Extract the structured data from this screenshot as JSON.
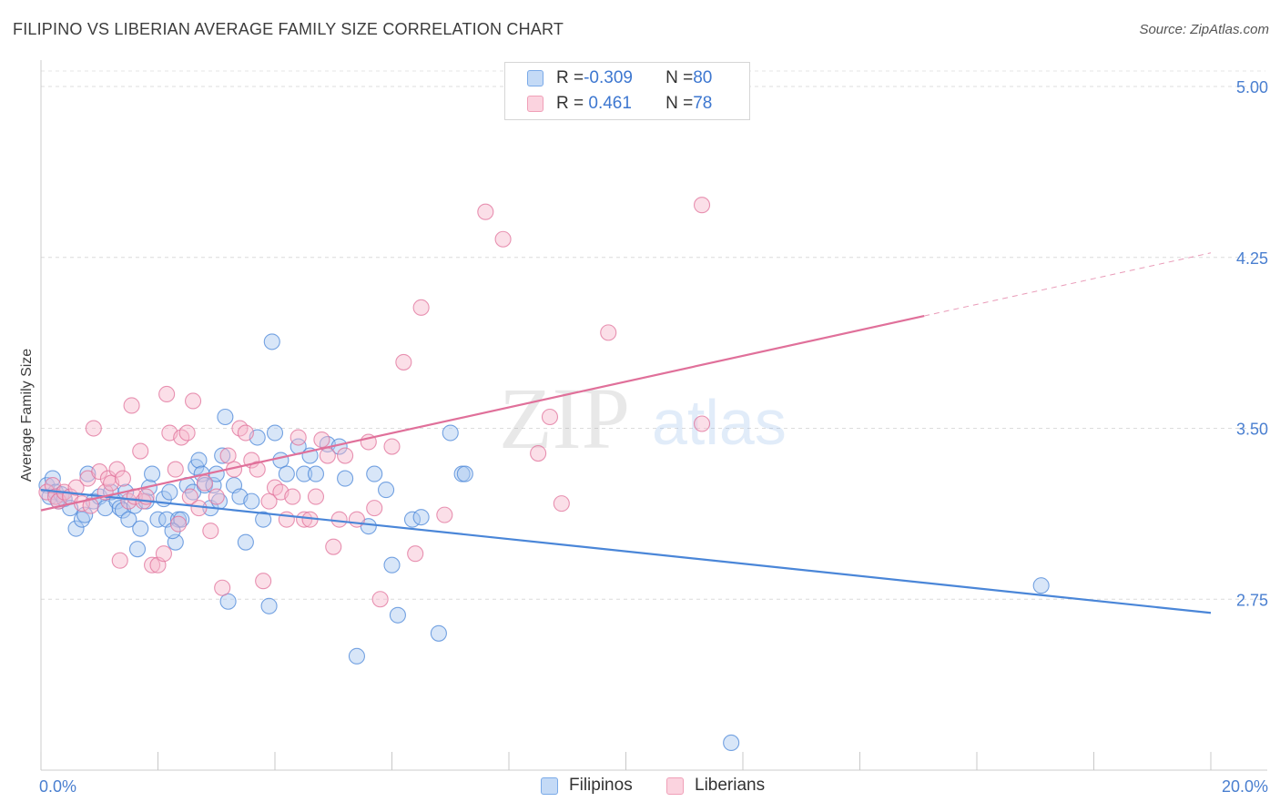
{
  "title": "FILIPINO VS LIBERIAN AVERAGE FAMILY SIZE CORRELATION CHART",
  "source": "Source: ZipAtlas.com",
  "watermark": {
    "zip": "ZIP",
    "atlas": "atlas"
  },
  "legend": {
    "rows": [
      {
        "r_label": "R = ",
        "r_value": "-0.309",
        "n_label": "N = ",
        "n_value": "80",
        "color": "#7aaae8",
        "fill": "#c4daf6"
      },
      {
        "r_label": "R = ",
        "r_value": " 0.461",
        "n_label": "N = ",
        "n_value": "78",
        "color": "#f0a0b8",
        "fill": "#fbd3df"
      }
    ]
  },
  "bottom_legend": [
    {
      "label": "Filipinos",
      "color": "#7aaae8",
      "fill": "#c4daf6"
    },
    {
      "label": "Liberians",
      "color": "#f0a0b8",
      "fill": "#fbd3df"
    }
  ],
  "chart_data": {
    "type": "scatter",
    "ylabel": "Average Family Size",
    "xlim": [
      0,
      20
    ],
    "ylim": [
      2.0,
      5.08
    ],
    "y_ticks": [
      {
        "value": 5.0,
        "label": "5.00"
      },
      {
        "value": 4.25,
        "label": "4.25"
      },
      {
        "value": 3.5,
        "label": "3.50"
      },
      {
        "value": 2.75,
        "label": "2.75"
      }
    ],
    "x_tick_labels": [
      {
        "value": 0,
        "label": "0.0%"
      },
      {
        "value": 20,
        "label": "20.0%"
      }
    ],
    "x_minor_ticks": [
      0,
      2,
      4,
      6,
      8,
      10,
      12,
      14,
      16,
      18,
      20
    ],
    "series": [
      {
        "name": "Filipinos",
        "color": "#4a86d8",
        "fill": "#a9c8f0",
        "trend": {
          "x0": 0,
          "y0": 3.23,
          "x1": 20,
          "y1": 2.69,
          "solid_until": 20
        },
        "points": [
          [
            0.1,
            3.25
          ],
          [
            0.15,
            3.2
          ],
          [
            0.2,
            3.28
          ],
          [
            0.25,
            3.22
          ],
          [
            0.3,
            3.18
          ],
          [
            0.35,
            3.21
          ],
          [
            0.4,
            3.19
          ],
          [
            0.5,
            3.15
          ],
          [
            0.6,
            3.06
          ],
          [
            0.7,
            3.1
          ],
          [
            0.75,
            3.12
          ],
          [
            0.8,
            3.3
          ],
          [
            0.9,
            3.18
          ],
          [
            1.0,
            3.2
          ],
          [
            1.1,
            3.15
          ],
          [
            1.2,
            3.22
          ],
          [
            1.3,
            3.18
          ],
          [
            1.35,
            3.15
          ],
          [
            1.4,
            3.14
          ],
          [
            1.5,
            3.1
          ],
          [
            1.6,
            3.16
          ],
          [
            1.65,
            2.97
          ],
          [
            1.7,
            3.06
          ],
          [
            1.8,
            3.18
          ],
          [
            1.85,
            3.24
          ],
          [
            1.9,
            3.3
          ],
          [
            2.0,
            3.1
          ],
          [
            2.1,
            3.19
          ],
          [
            2.15,
            3.1
          ],
          [
            2.2,
            3.22
          ],
          [
            2.3,
            3.0
          ],
          [
            2.35,
            3.1
          ],
          [
            2.4,
            3.1
          ],
          [
            2.5,
            3.25
          ],
          [
            2.6,
            3.22
          ],
          [
            2.65,
            3.33
          ],
          [
            2.7,
            3.36
          ],
          [
            2.75,
            3.3
          ],
          [
            2.8,
            3.25
          ],
          [
            2.9,
            3.15
          ],
          [
            2.95,
            3.25
          ],
          [
            3.0,
            3.3
          ],
          [
            3.05,
            3.18
          ],
          [
            3.1,
            3.38
          ],
          [
            3.15,
            3.55
          ],
          [
            3.2,
            2.74
          ],
          [
            3.3,
            3.25
          ],
          [
            3.4,
            3.2
          ],
          [
            3.5,
            3.0
          ],
          [
            3.6,
            3.18
          ],
          [
            3.7,
            3.46
          ],
          [
            3.8,
            3.1
          ],
          [
            3.9,
            2.72
          ],
          [
            3.95,
            3.88
          ],
          [
            4.0,
            3.48
          ],
          [
            4.1,
            3.36
          ],
          [
            4.2,
            3.3
          ],
          [
            4.4,
            3.42
          ],
          [
            4.5,
            3.3
          ],
          [
            4.6,
            3.38
          ],
          [
            4.7,
            3.3
          ],
          [
            4.9,
            3.43
          ],
          [
            5.1,
            3.42
          ],
          [
            5.2,
            3.28
          ],
          [
            5.4,
            2.5
          ],
          [
            5.6,
            3.07
          ],
          [
            5.7,
            3.3
          ],
          [
            5.9,
            3.23
          ],
          [
            6.0,
            2.9
          ],
          [
            6.1,
            2.68
          ],
          [
            6.35,
            3.1
          ],
          [
            6.5,
            3.11
          ],
          [
            6.8,
            2.6
          ],
          [
            7.0,
            3.48
          ],
          [
            7.2,
            3.3
          ],
          [
            7.25,
            3.3
          ],
          [
            17.1,
            2.81
          ],
          [
            11.8,
            2.12
          ],
          [
            2.25,
            3.05
          ],
          [
            1.45,
            3.22
          ]
        ]
      },
      {
        "name": "Liberians",
        "color": "#e0709a",
        "fill": "#f6b9cc",
        "trend": {
          "x0": 0,
          "y0": 3.14,
          "x1": 20,
          "y1": 4.27,
          "solid_until": 15.1
        },
        "points": [
          [
            0.1,
            3.22
          ],
          [
            0.2,
            3.25
          ],
          [
            0.25,
            3.2
          ],
          [
            0.3,
            3.18
          ],
          [
            0.4,
            3.22
          ],
          [
            0.5,
            3.2
          ],
          [
            0.6,
            3.24
          ],
          [
            0.7,
            3.17
          ],
          [
            0.8,
            3.28
          ],
          [
            0.85,
            3.16
          ],
          [
            0.9,
            3.5
          ],
          [
            1.0,
            3.31
          ],
          [
            1.1,
            3.22
          ],
          [
            1.15,
            3.28
          ],
          [
            1.2,
            3.26
          ],
          [
            1.3,
            3.32
          ],
          [
            1.35,
            2.92
          ],
          [
            1.4,
            3.28
          ],
          [
            1.5,
            3.18
          ],
          [
            1.55,
            3.6
          ],
          [
            1.6,
            3.2
          ],
          [
            1.7,
            3.4
          ],
          [
            1.75,
            3.18
          ],
          [
            1.8,
            3.2
          ],
          [
            1.9,
            2.9
          ],
          [
            2.0,
            2.9
          ],
          [
            2.1,
            2.95
          ],
          [
            2.15,
            3.65
          ],
          [
            2.2,
            3.48
          ],
          [
            2.3,
            3.32
          ],
          [
            2.35,
            3.08
          ],
          [
            2.4,
            3.46
          ],
          [
            2.5,
            3.48
          ],
          [
            2.55,
            3.2
          ],
          [
            2.6,
            3.62
          ],
          [
            2.7,
            3.15
          ],
          [
            2.8,
            3.26
          ],
          [
            2.9,
            3.05
          ],
          [
            3.0,
            3.2
          ],
          [
            3.1,
            2.8
          ],
          [
            3.2,
            3.38
          ],
          [
            3.3,
            3.32
          ],
          [
            3.4,
            3.5
          ],
          [
            3.5,
            3.48
          ],
          [
            3.6,
            3.36
          ],
          [
            3.7,
            3.32
          ],
          [
            3.8,
            2.83
          ],
          [
            3.9,
            3.18
          ],
          [
            4.0,
            3.24
          ],
          [
            4.1,
            3.22
          ],
          [
            4.2,
            3.1
          ],
          [
            4.3,
            3.2
          ],
          [
            4.4,
            3.46
          ],
          [
            4.5,
            3.1
          ],
          [
            4.6,
            3.1
          ],
          [
            4.7,
            3.2
          ],
          [
            4.8,
            3.45
          ],
          [
            4.9,
            3.38
          ],
          [
            5.0,
            2.98
          ],
          [
            5.1,
            3.1
          ],
          [
            5.2,
            3.38
          ],
          [
            5.4,
            3.1
          ],
          [
            5.6,
            3.44
          ],
          [
            5.7,
            3.15
          ],
          [
            5.8,
            2.75
          ],
          [
            6.0,
            3.42
          ],
          [
            6.2,
            3.79
          ],
          [
            6.4,
            2.95
          ],
          [
            6.9,
            3.12
          ],
          [
            6.5,
            4.03
          ],
          [
            7.6,
            4.45
          ],
          [
            7.9,
            4.33
          ],
          [
            8.5,
            3.39
          ],
          [
            8.7,
            3.55
          ],
          [
            8.9,
            3.17
          ],
          [
            9.7,
            3.92
          ],
          [
            11.3,
            3.52
          ],
          [
            11.3,
            4.48
          ]
        ]
      }
    ]
  }
}
